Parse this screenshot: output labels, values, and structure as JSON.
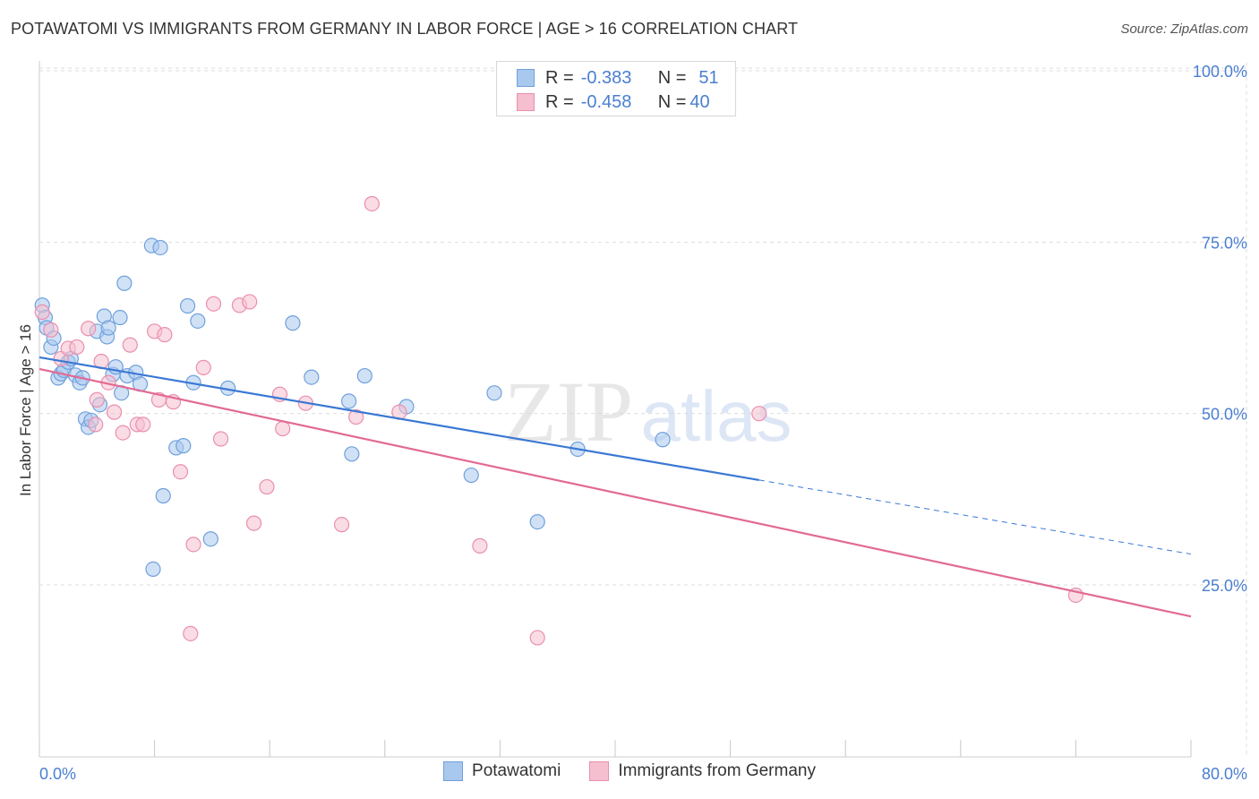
{
  "title": "POTAWATOMI VS IMMIGRANTS FROM GERMANY IN LABOR FORCE | AGE > 16 CORRELATION CHART",
  "source": "Source: ZipAtlas.com",
  "watermark": {
    "zip": "ZIP",
    "atlas": "atlas"
  },
  "legend_top": [
    {
      "r_label": "R =",
      "r_value": "-0.383",
      "n_label": "N =",
      "n_value": "51"
    },
    {
      "r_label": "R =",
      "r_value": "-0.458",
      "n_label": "N =",
      "n_value": "40"
    }
  ],
  "colors": {
    "blue_fill": "#a9c8ee",
    "blue_stroke": "#6fa0dc",
    "blue_line": "#3a78d4",
    "pink_fill": "#f5bfd0",
    "pink_stroke": "#e98fae",
    "pink_line": "#e26a93",
    "tick_text": "#4a7fd0",
    "grid": "#dddddd"
  },
  "chart_data": {
    "type": "scatter",
    "title": "POTAWATOMI VS IMMIGRANTS FROM GERMANY IN LABOR FORCE | AGE > 16 CORRELATION CHART",
    "xlabel": "",
    "ylabel": "In Labor Force | Age > 16",
    "xlim": [
      0,
      80
    ],
    "ylim": [
      0,
      105
    ],
    "x_tick_labels": [
      "0.0%",
      "80.0%"
    ],
    "y_ticks": [
      25,
      50,
      75,
      100
    ],
    "y_tick_labels": [
      "25.0%",
      "50.0%",
      "75.0%",
      "100.0%"
    ],
    "grid": true,
    "legend_position": "top-center",
    "series": [
      {
        "name": "Potawatomi",
        "R": -0.383,
        "N": 51,
        "points": [
          [
            0.2,
            65.8
          ],
          [
            0.4,
            64.0
          ],
          [
            0.5,
            62.5
          ],
          [
            0.8,
            59.7
          ],
          [
            1.0,
            61.0
          ],
          [
            1.3,
            55.2
          ],
          [
            1.5,
            55.8
          ],
          [
            1.7,
            56.3
          ],
          [
            2.0,
            57.5
          ],
          [
            2.2,
            58.0
          ],
          [
            2.5,
            55.6
          ],
          [
            2.8,
            54.5
          ],
          [
            3.0,
            55.2
          ],
          [
            3.2,
            49.2
          ],
          [
            3.4,
            48.0
          ],
          [
            3.6,
            49.0
          ],
          [
            4.0,
            62.0
          ],
          [
            4.2,
            51.3
          ],
          [
            4.5,
            64.2
          ],
          [
            4.7,
            61.2
          ],
          [
            4.8,
            62.5
          ],
          [
            5.1,
            55.7
          ],
          [
            5.3,
            56.8
          ],
          [
            5.6,
            64.0
          ],
          [
            5.7,
            53.0
          ],
          [
            5.9,
            69.0
          ],
          [
            6.1,
            55.5
          ],
          [
            6.7,
            56.0
          ],
          [
            7.0,
            54.3
          ],
          [
            7.8,
            74.5
          ],
          [
            7.9,
            27.3
          ],
          [
            8.4,
            74.2
          ],
          [
            8.6,
            38.0
          ],
          [
            9.5,
            45.0
          ],
          [
            10.0,
            45.3
          ],
          [
            10.3,
            65.7
          ],
          [
            10.7,
            54.5
          ],
          [
            11.0,
            63.5
          ],
          [
            11.9,
            31.7
          ],
          [
            13.1,
            53.7
          ],
          [
            17.6,
            63.2
          ],
          [
            18.9,
            55.3
          ],
          [
            21.5,
            51.8
          ],
          [
            21.7,
            44.1
          ],
          [
            22.6,
            55.5
          ],
          [
            25.5,
            51.0
          ],
          [
            31.6,
            53.0
          ],
          [
            34.6,
            34.2
          ],
          [
            37.4,
            44.8
          ],
          [
            43.3,
            46.2
          ],
          [
            30.0,
            41.0
          ]
        ],
        "trend": {
          "x1": 0,
          "y1": 58.2,
          "x2": 50,
          "y2": 40.3,
          "dash_to_x": 80,
          "dash_to_y": 29.5
        }
      },
      {
        "name": "Immigrants from Germany",
        "R": -0.458,
        "N": 40,
        "points": [
          [
            0.2,
            64.8
          ],
          [
            0.8,
            62.2
          ],
          [
            1.5,
            58.0
          ],
          [
            2.0,
            59.5
          ],
          [
            2.6,
            59.7
          ],
          [
            3.4,
            62.4
          ],
          [
            3.9,
            48.4
          ],
          [
            4.3,
            57.6
          ],
          [
            4.8,
            54.5
          ],
          [
            5.2,
            50.2
          ],
          [
            5.8,
            47.2
          ],
          [
            6.3,
            60.0
          ],
          [
            6.8,
            48.4
          ],
          [
            7.2,
            48.4
          ],
          [
            8.0,
            62.0
          ],
          [
            8.3,
            52.0
          ],
          [
            8.7,
            61.5
          ],
          [
            9.3,
            51.7
          ],
          [
            9.8,
            41.5
          ],
          [
            10.5,
            17.9
          ],
          [
            10.7,
            30.9
          ],
          [
            11.4,
            56.7
          ],
          [
            12.1,
            66.0
          ],
          [
            12.6,
            46.3
          ],
          [
            13.9,
            65.8
          ],
          [
            14.6,
            66.3
          ],
          [
            14.9,
            34.0
          ],
          [
            15.8,
            39.3
          ],
          [
            16.7,
            52.8
          ],
          [
            16.9,
            47.8
          ],
          [
            18.5,
            51.5
          ],
          [
            21.0,
            33.8
          ],
          [
            22.0,
            49.5
          ],
          [
            23.1,
            80.6
          ],
          [
            25.0,
            50.2
          ],
          [
            30.6,
            30.7
          ],
          [
            34.6,
            17.3
          ],
          [
            50.0,
            50.0
          ],
          [
            72.0,
            23.5
          ],
          [
            4.0,
            52.0
          ]
        ],
        "trend": {
          "x1": 0,
          "y1": 56.5,
          "x2": 80,
          "y2": 20.4
        }
      }
    ]
  },
  "legend_bottom": [
    {
      "label": "Potawatomi"
    },
    {
      "label": "Immigrants from Germany"
    }
  ]
}
